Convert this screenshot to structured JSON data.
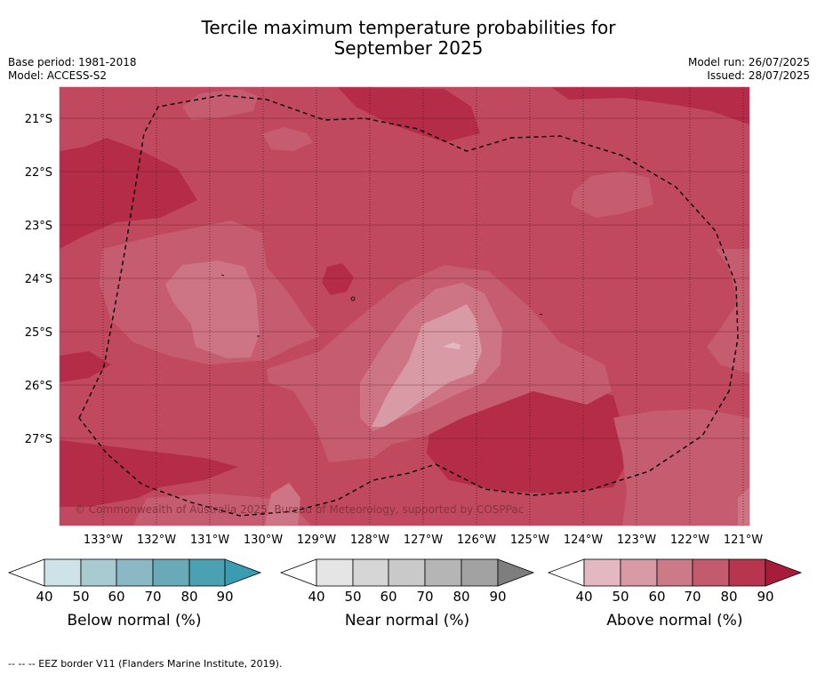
{
  "title": {
    "line1": "Tercile maximum temperature probabilities for",
    "line2": "September 2025"
  },
  "meta": {
    "base_period": "Base period: 1981-2018",
    "model": "Model: ACCESS-S2",
    "model_run": "Model run: 26/07/2025",
    "issued": "Issued: 28/07/2025"
  },
  "map": {
    "lat_labels": [
      "21°S",
      "22°S",
      "23°S",
      "24°S",
      "25°S",
      "26°S",
      "27°S"
    ],
    "lon_labels": [
      "133°W",
      "132°W",
      "131°W",
      "130°W",
      "129°W",
      "128°W",
      "127°W",
      "126°W",
      "125°W",
      "124°W",
      "123°W",
      "122°W",
      "121°W"
    ],
    "copyright": "© Commonwealth of Australia 2025, Bureau of Meteorology, supported by COSPPac"
  },
  "colorbars": [
    {
      "label": "Below normal (%)",
      "ticks": [
        "40",
        "50",
        "60",
        "70",
        "80",
        "90"
      ],
      "colors": [
        "#cde3e8",
        "#a8cad1",
        "#8ab9c5",
        "#6aa9b8",
        "#4aa1b1"
      ],
      "extend_color": "#3a9cb0"
    },
    {
      "label": "Near normal (%)",
      "ticks": [
        "40",
        "50",
        "60",
        "70",
        "80",
        "90"
      ],
      "colors": [
        "#e5e5e5",
        "#d6d6d6",
        "#c9c9c9",
        "#b5b5b5",
        "#a2a2a2"
      ],
      "extend_color": "#7e7e7e"
    },
    {
      "label": "Above normal (%)",
      "ticks": [
        "40",
        "50",
        "60",
        "70",
        "80",
        "90"
      ],
      "colors": [
        "#e4b8c0",
        "#d89aa5",
        "#cd7a88",
        "#c35a6d",
        "#b83550"
      ],
      "extend_color": "#a81c3b"
    }
  ],
  "footer": "--  --  -- EEZ border V11 (Flanders Marine Institute, 2019)."
}
